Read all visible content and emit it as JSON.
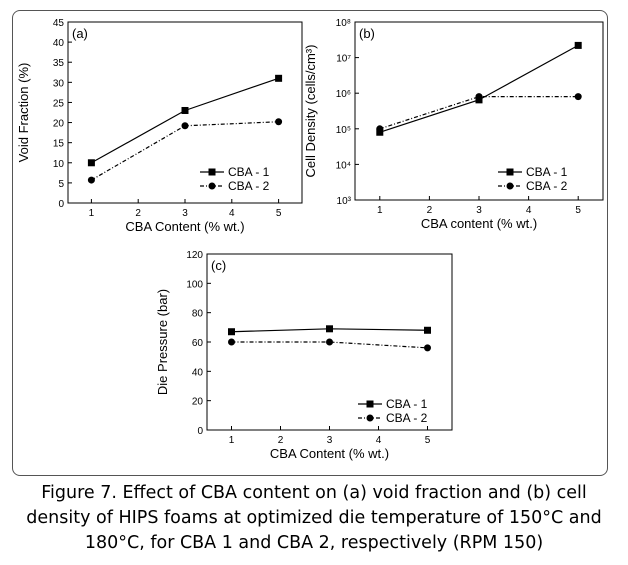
{
  "caption": {
    "line1": "Figure 7. Effect of CBA content on (a) void fraction and (b) cell",
    "line2": "density of HIPS foams at optimized die temperature of 150°C and",
    "line3": "180°C, for CBA 1 and CBA 2, respectively (RPM 150)"
  },
  "chart_data": [
    {
      "type": "line",
      "panel": "(a)",
      "xlabel": "CBA Content (% wt.)",
      "ylabel": "Void  Fraction (%)",
      "xlim": [
        0.5,
        5.5
      ],
      "ylim": [
        0,
        45
      ],
      "xticks": [
        1,
        2,
        3,
        4,
        5
      ],
      "yticks": [
        0,
        5,
        10,
        15,
        20,
        25,
        30,
        35,
        40,
        45
      ],
      "scale": "linear",
      "legend_position": "bottom-right",
      "series": [
        {
          "name": "CBA - 1",
          "marker": "square",
          "dash": "solid",
          "x": [
            1,
            3,
            5
          ],
          "y": [
            10,
            23,
            31
          ]
        },
        {
          "name": "CBA - 2",
          "marker": "circle",
          "dash": "dashdot",
          "x": [
            1,
            3,
            5
          ],
          "y": [
            5.7,
            19.2,
            20.2
          ]
        }
      ]
    },
    {
      "type": "line",
      "panel": "(b)",
      "xlabel": "CBA content (% wt.)",
      "ylabel": "Cell Density (cells/cm³)",
      "xlim": [
        0.5,
        5.5
      ],
      "ylim": [
        1000,
        100000000
      ],
      "xticks": [
        1,
        2,
        3,
        4,
        5
      ],
      "yticks": [
        "10³",
        "10⁴",
        "10⁵",
        "10⁶",
        "10⁷",
        "10⁸"
      ],
      "scale": "log",
      "legend_position": "bottom-right",
      "series": [
        {
          "name": "CBA - 1",
          "marker": "square",
          "dash": "solid",
          "x": [
            1,
            3,
            5
          ],
          "y": [
            80000,
            650000,
            22000000
          ]
        },
        {
          "name": "CBA - 2",
          "marker": "circle",
          "dash": "dashdot",
          "x": [
            1,
            3,
            5
          ],
          "y": [
            100000,
            800000,
            800000
          ]
        }
      ]
    },
    {
      "type": "line",
      "panel": "(c)",
      "xlabel": "CBA Content (% wt.)",
      "ylabel": "Die Pressure (bar)",
      "xlim": [
        0.5,
        5.5
      ],
      "ylim": [
        0,
        120
      ],
      "xticks": [
        1,
        2,
        3,
        4,
        5
      ],
      "yticks": [
        0,
        20,
        40,
        60,
        80,
        100,
        120
      ],
      "scale": "linear",
      "legend_position": "bottom-right",
      "series": [
        {
          "name": "CBA - 1",
          "marker": "square",
          "dash": "solid",
          "x": [
            1,
            3,
            5
          ],
          "y": [
            67,
            69,
            68
          ]
        },
        {
          "name": "CBA - 2",
          "marker": "circle",
          "dash": "dashdot",
          "x": [
            1,
            3,
            5
          ],
          "y": [
            60,
            60,
            56
          ]
        }
      ]
    }
  ]
}
